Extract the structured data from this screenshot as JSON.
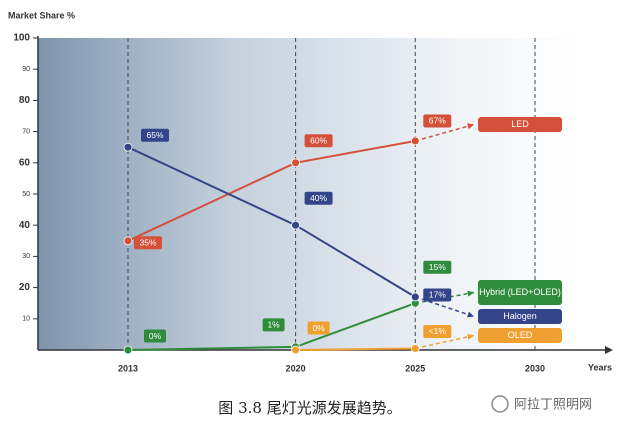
{
  "chart_data": {
    "type": "line",
    "y_label": "Market Share %",
    "x_label": "Years",
    "x": [
      2013,
      2020,
      2025
    ],
    "xlim": [
      2009.2,
      2033.2
    ],
    "xticks": [
      2013,
      2020,
      2025,
      2030
    ],
    "ylim": [
      0,
      100
    ],
    "yticks": [
      10,
      20,
      30,
      40,
      50,
      60,
      70,
      80,
      90,
      100
    ],
    "series": [
      {
        "name": "LED",
        "color": "#d4503a",
        "values": [
          35,
          60,
          67
        ],
        "value_labels": [
          "35%",
          "60%",
          "67%"
        ]
      },
      {
        "name": "Hybrid (LED+OLED)",
        "color": "#2f8c3c",
        "values": [
          0,
          1,
          15
        ],
        "value_labels": [
          "0%",
          "1%",
          "15%"
        ]
      },
      {
        "name": "Halogen",
        "color": "#34448a",
        "values": [
          65,
          40,
          17
        ],
        "value_labels": [
          "65%",
          "40%",
          "17%"
        ]
      },
      {
        "name": "OLED",
        "color": "#f0a030",
        "values": [
          null,
          0,
          0.5
        ],
        "value_labels": [
          null,
          "0%",
          "<1%"
        ]
      }
    ],
    "caption": "图 3.8 尾灯光源发展趋势。",
    "watermark": "阿拉丁照明网"
  }
}
